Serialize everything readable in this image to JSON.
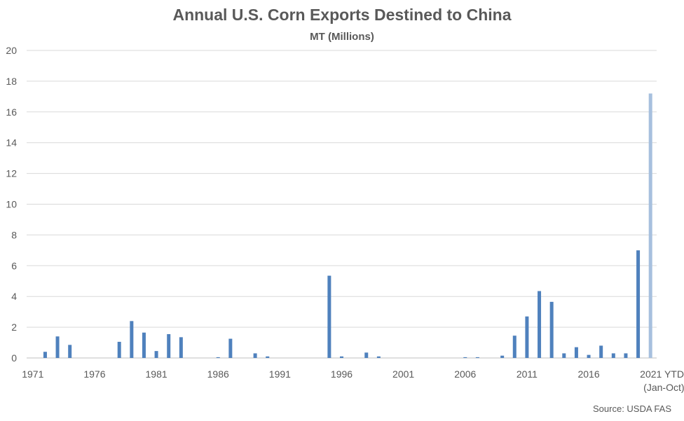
{
  "title": "Annual U.S. Corn Exports Destined to China",
  "subtitle": "MT (Millions)",
  "source": "Source: USDA FAS",
  "colors": {
    "bar": "#4F81BD",
    "bar_ytd": "#A7C0DE",
    "grid": "#D9D9D9",
    "axis": "#BFBFBF",
    "text": "#595959"
  },
  "chart_data": {
    "type": "bar",
    "years": [
      1971,
      1972,
      1973,
      1974,
      1975,
      1976,
      1977,
      1978,
      1979,
      1980,
      1981,
      1982,
      1983,
      1984,
      1985,
      1986,
      1987,
      1988,
      1989,
      1990,
      1991,
      1992,
      1993,
      1994,
      1995,
      1996,
      1997,
      1998,
      1999,
      2000,
      2001,
      2002,
      2003,
      2004,
      2005,
      2006,
      2007,
      2008,
      2009,
      2010,
      2011,
      2012,
      2013,
      2014,
      2015,
      2016,
      2017,
      2018,
      2019,
      2020,
      2021
    ],
    "values": [
      0,
      0.4,
      1.4,
      0.85,
      0,
      0,
      0,
      1.05,
      2.4,
      1.65,
      0.45,
      1.55,
      1.35,
      0,
      0,
      0.05,
      1.25,
      0,
      0.3,
      0.1,
      0,
      0,
      0,
      0,
      5.35,
      0.1,
      0,
      0.35,
      0.1,
      0,
      0,
      0,
      0,
      0,
      0,
      0.05,
      0.05,
      0,
      0.15,
      1.45,
      2.7,
      4.35,
      3.65,
      0.3,
      0.7,
      0.2,
      0.8,
      0.3,
      0.3,
      7.0,
      17.2
    ],
    "highlight_last": true,
    "tick_labels": [
      "1971",
      "1976",
      "1981",
      "1986",
      "1991",
      "1996",
      "2001",
      "2006",
      "2011",
      "2016",
      "2021 YTD"
    ],
    "tick_sublabel": "(Jan-Oct)",
    "yticks": [
      0,
      2,
      4,
      6,
      8,
      10,
      12,
      14,
      16,
      18,
      20
    ],
    "ylim": [
      0,
      20
    ],
    "grid": true,
    "legend": "none"
  }
}
